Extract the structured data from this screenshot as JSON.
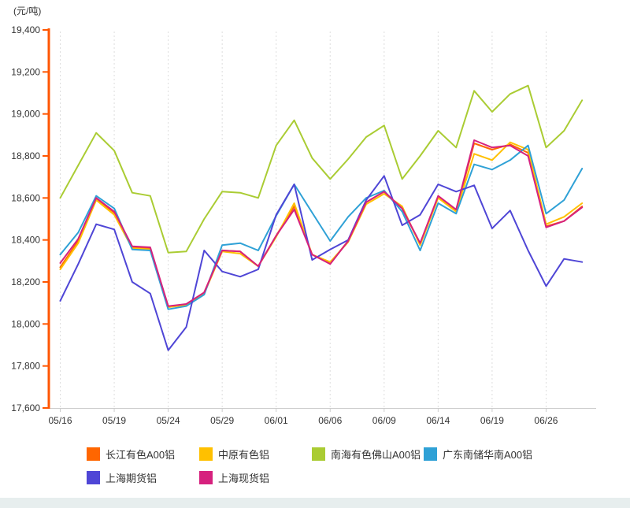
{
  "chart_data": {
    "type": "line",
    "unit_label": "(元/吨)",
    "ylabel": "元/吨",
    "xlabel": "",
    "ylim": [
      17600,
      19400
    ],
    "y_tick_step": 200,
    "y_tick_labels": [
      "19,400",
      "19,200",
      "19,000",
      "18,800",
      "18,600",
      "18,400",
      "18,200",
      "18,000",
      "17,800",
      "17,600"
    ],
    "n_points": 30,
    "x_tick_indices": [
      0,
      3,
      6,
      9,
      12,
      15,
      18,
      21,
      24,
      27
    ],
    "x_tick_labels": [
      "05/16",
      "05/19",
      "05/24",
      "05/29",
      "06/01",
      "06/06",
      "06/09",
      "06/14",
      "06/19",
      "06/26"
    ],
    "grid": "vertical-dotted",
    "legend_position": "bottom",
    "series": [
      {
        "name": "长江有色A00铝",
        "color": "#FF6600",
        "values": [
          18270,
          18395,
          18595,
          18530,
          18365,
          18360,
          18085,
          18090,
          18150,
          18350,
          18345,
          18275,
          18420,
          18560,
          18330,
          18290,
          18395,
          18580,
          18630,
          18550,
          18380,
          18605,
          18540,
          18860,
          18830,
          18855,
          18815,
          18465,
          18490,
          18560
        ]
      },
      {
        "name": "中原有色铝",
        "color": "#FFC000",
        "values": [
          18260,
          18385,
          18590,
          18520,
          18360,
          18355,
          18080,
          18090,
          18145,
          18345,
          18335,
          18275,
          18415,
          18575,
          18330,
          18295,
          18390,
          18570,
          18620,
          18560,
          18375,
          18600,
          18535,
          18810,
          18780,
          18865,
          18830,
          18475,
          18510,
          18575
        ]
      },
      {
        "name": "南海有色佛山A00铝",
        "color": "#AACC33",
        "values": [
          18600,
          18755,
          18910,
          18825,
          18625,
          18610,
          18340,
          18345,
          18500,
          18630,
          18625,
          18600,
          18850,
          18970,
          18790,
          18690,
          18785,
          18890,
          18945,
          18690,
          18800,
          18920,
          18840,
          19110,
          19010,
          19095,
          19135,
          18840,
          18920,
          19065
        ]
      },
      {
        "name": "广东南储华南A00铝",
        "color": "#2FA1D6",
        "values": [
          18330,
          18435,
          18610,
          18550,
          18355,
          18350,
          18070,
          18085,
          18140,
          18375,
          18385,
          18350,
          18515,
          18665,
          18530,
          18395,
          18510,
          18600,
          18635,
          18535,
          18350,
          18575,
          18525,
          18760,
          18735,
          18780,
          18850,
          18525,
          18590,
          18740
        ]
      },
      {
        "name": "上海期货铝",
        "color": "#4F46D6",
        "values": [
          18110,
          18285,
          18475,
          18450,
          18200,
          18145,
          17875,
          17985,
          18350,
          18250,
          18225,
          18260,
          18520,
          18665,
          18305,
          18355,
          18400,
          18590,
          18705,
          18470,
          18520,
          18665,
          18630,
          18660,
          18455,
          18540,
          18350,
          18180,
          18310,
          18295
        ]
      },
      {
        "name": "上海现货铝",
        "color": "#D6217E",
        "values": [
          18290,
          18405,
          18600,
          18535,
          18370,
          18365,
          18085,
          18095,
          18150,
          18350,
          18345,
          18275,
          18420,
          18545,
          18330,
          18285,
          18395,
          18580,
          18630,
          18550,
          18385,
          18610,
          18545,
          18875,
          18840,
          18850,
          18800,
          18460,
          18490,
          18555
        ]
      }
    ]
  },
  "style": {
    "y_axis_color": "#FF5500",
    "x_axis_color": "#CCCCCC",
    "grid_color": "#DDDDDD",
    "tick_label_color": "#333333",
    "legend_text_color": "#333333",
    "footer_strip_color": "#e7eeee"
  }
}
